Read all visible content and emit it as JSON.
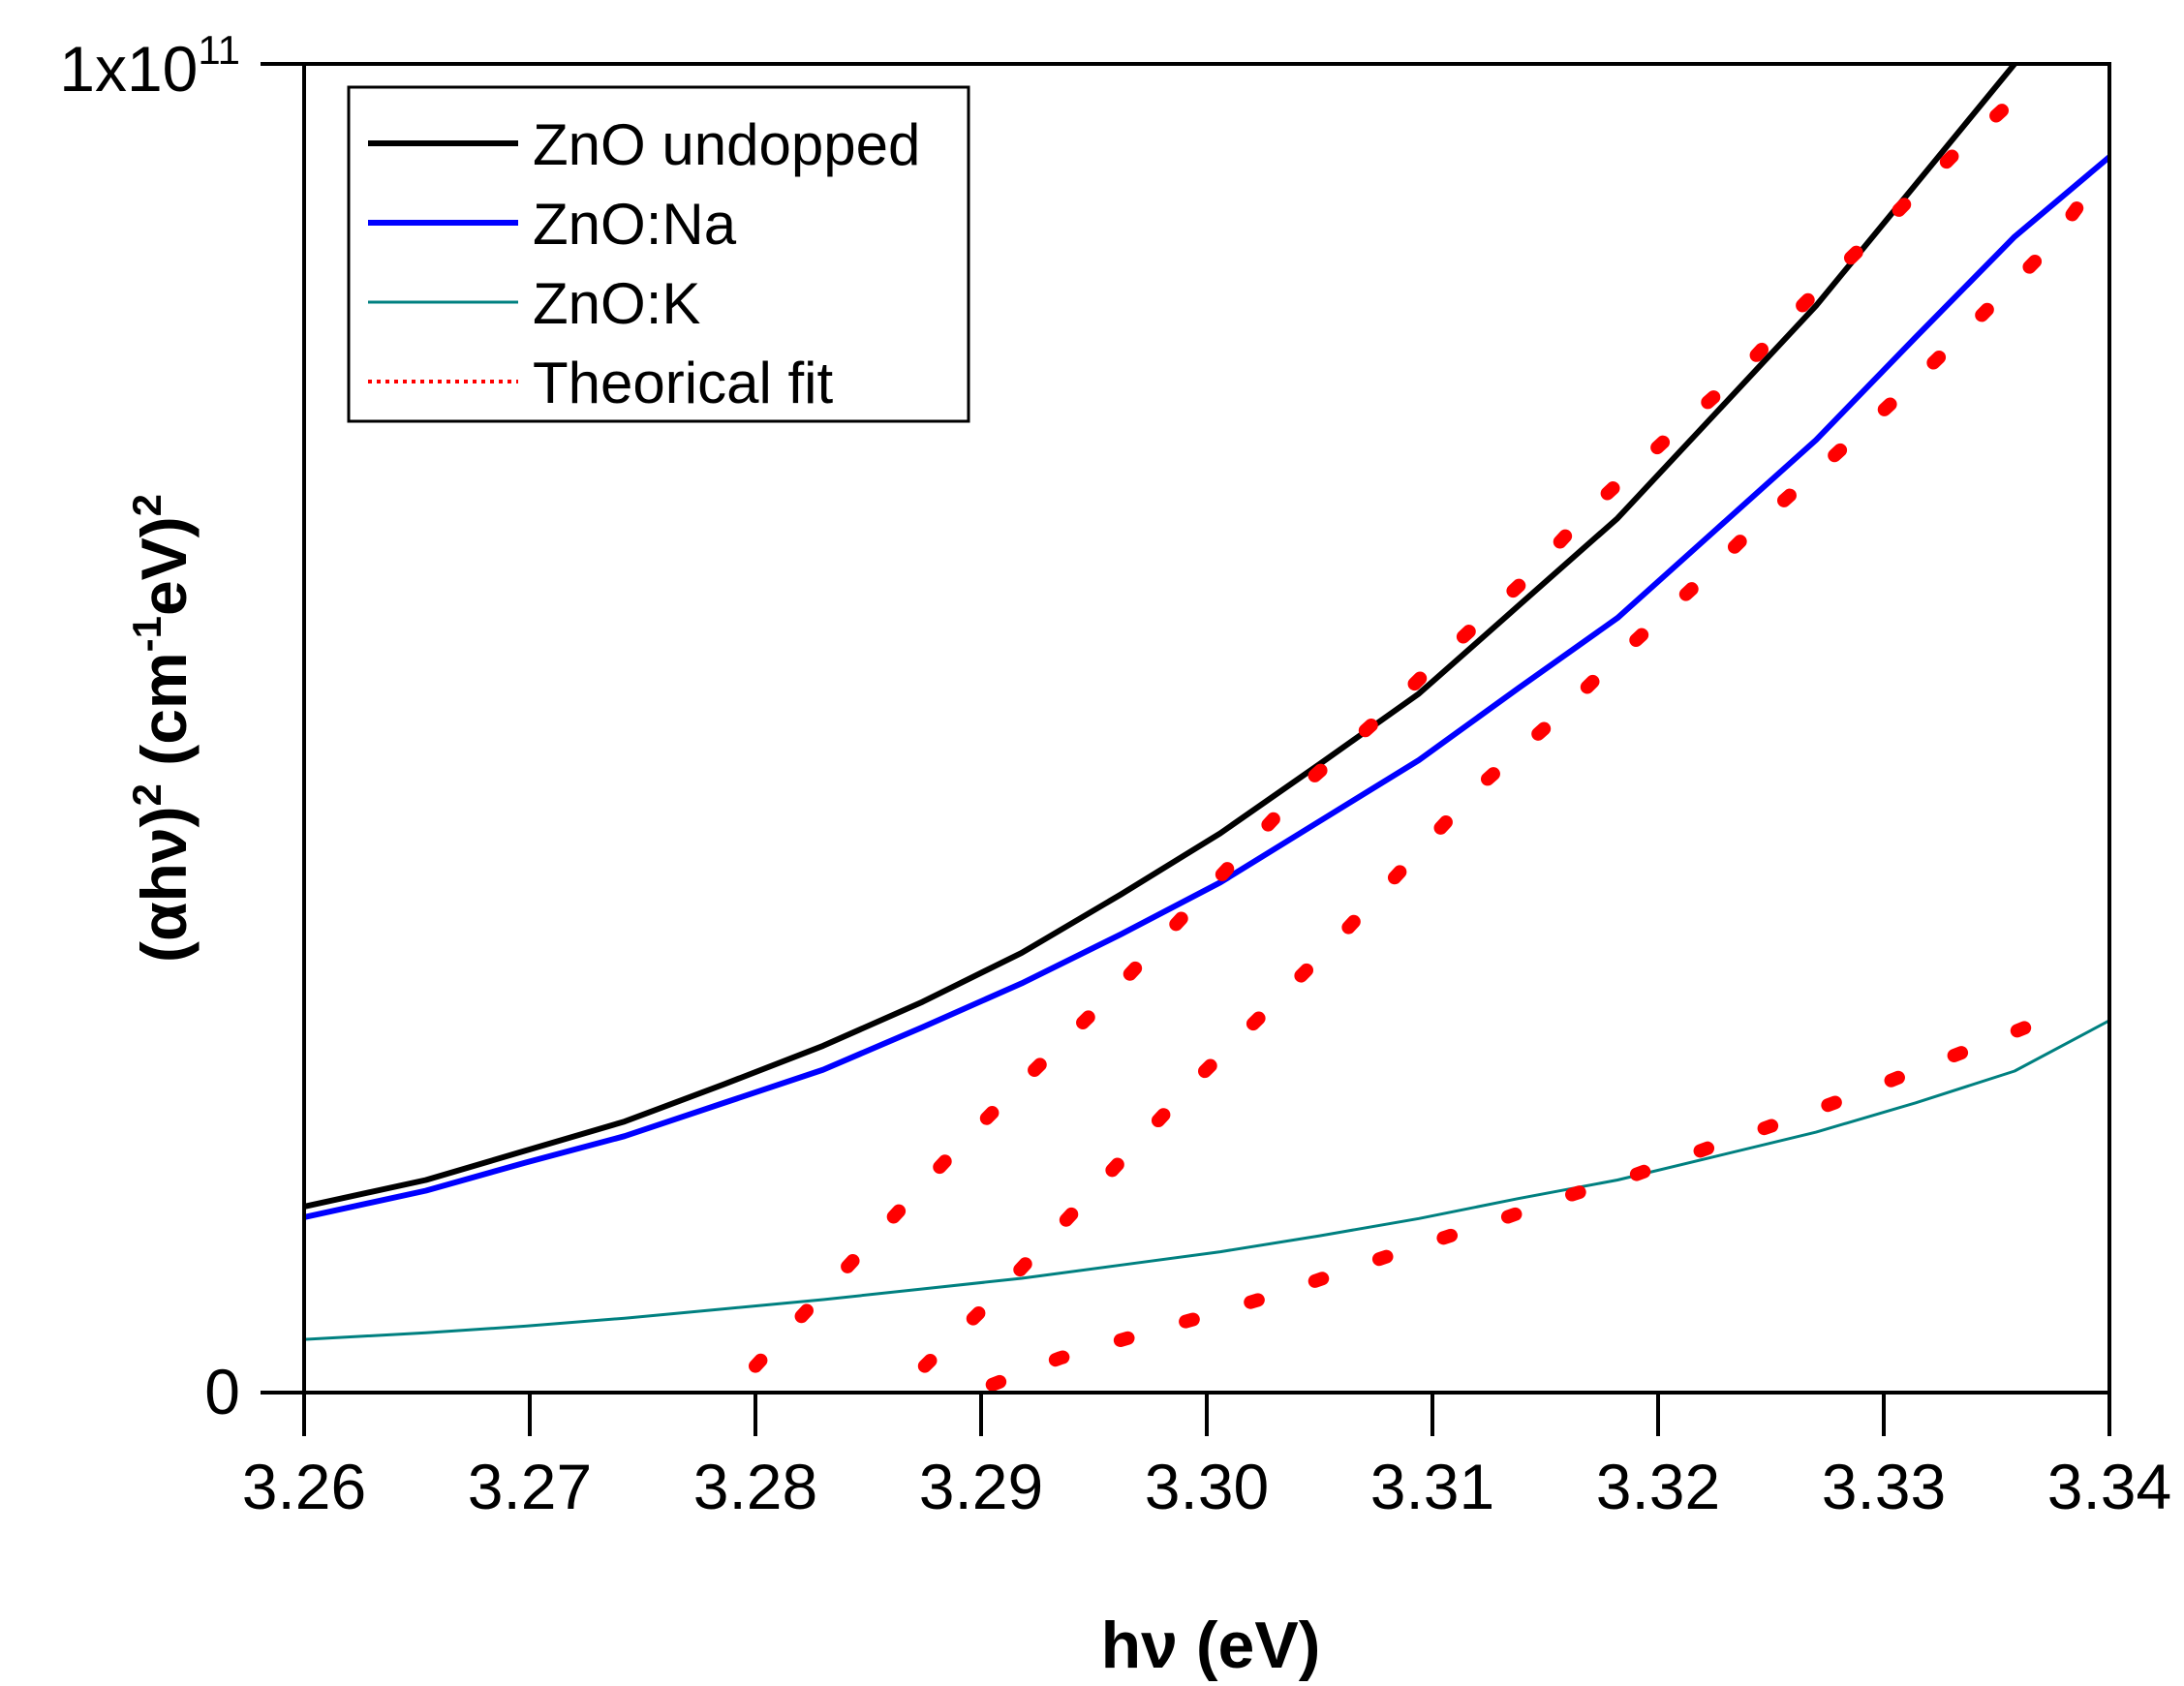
{
  "chart_data": {
    "type": "line",
    "title": "",
    "xlabel": "hν (eV)",
    "ylabel": "(αhν)² (cm⁻¹eV)²",
    "xlabel_parts": {
      "main": "hν ",
      "unit": "(eV)"
    },
    "ylabel_parts": {
      "pre": "(αhν)",
      "sup1": "2",
      "mid": " (cm",
      "sup2": "-1",
      "post": "eV)",
      "sup3": "2"
    },
    "xlim": [
      3.26,
      3.34
    ],
    "ylim": [
      0,
      100000000000.0
    ],
    "x_ticks": [
      3.26,
      3.27,
      3.28,
      3.29,
      3.3,
      3.31,
      3.32,
      3.33,
      3.34
    ],
    "x_tick_labels": [
      "3.26",
      "3.27",
      "3.28",
      "3.29",
      "3.30",
      "3.31",
      "3.32",
      "3.33",
      "3.34"
    ],
    "y_ticks": [
      0,
      100000000000.0
    ],
    "y_tick_labels": [
      {
        "base": "0",
        "exp": ""
      },
      {
        "base": "1x10",
        "exp": "11"
      }
    ],
    "grid": false,
    "legend_position": "top-left",
    "series": [
      {
        "name": "ZnO undopped",
        "color": "#000000",
        "style": "solid",
        "weight": "thick",
        "x": [
          3.26,
          3.2654,
          3.2698,
          3.2742,
          3.2786,
          3.283,
          3.2874,
          3.2918,
          3.2962,
          3.3006,
          3.305,
          3.3094,
          3.3138,
          3.3182,
          3.3226,
          3.327,
          3.3314,
          3.3358
        ],
        "y": [
          14000000000.0,
          16000000000.0,
          18200000000.0,
          20400000000.0,
          23200000000.0,
          26100000000.0,
          29400000000.0,
          33100000000.0,
          37500000000.0,
          42100000000.0,
          47300000000.0,
          52600000000.0,
          59200000000.0,
          65800000000.0,
          73800000000.0,
          81800000000.0,
          90900000000.0,
          100000000000.0
        ]
      },
      {
        "name": "ZnO:Na",
        "color": "#0000ff",
        "style": "solid",
        "weight": "thick",
        "x": [
          3.26,
          3.2654,
          3.2698,
          3.2742,
          3.2786,
          3.283,
          3.2874,
          3.2918,
          3.2962,
          3.3006,
          3.305,
          3.3094,
          3.3138,
          3.3182,
          3.3226,
          3.327,
          3.3314,
          3.3358,
          3.34
        ],
        "y": [
          13200000000.0,
          15200000000.0,
          17300000000.0,
          19300000000.0,
          21800000000.0,
          24300000000.0,
          27500000000.0,
          30800000000.0,
          34500000000.0,
          38400000000.0,
          43000000000.0,
          47600000000.0,
          53000000000.0,
          58300000000.0,
          65000000000.0,
          71700000000.0,
          79400000000.0,
          87000000000.0,
          93000000000.0
        ]
      },
      {
        "name": "ZnO:K",
        "color": "#008080",
        "style": "solid",
        "weight": "thin",
        "x": [
          3.26,
          3.2654,
          3.2698,
          3.2742,
          3.2786,
          3.283,
          3.2874,
          3.2918,
          3.2962,
          3.3006,
          3.305,
          3.3094,
          3.3138,
          3.3182,
          3.3226,
          3.327,
          3.3314,
          3.3358,
          3.34
        ],
        "y": [
          4000000000.0,
          4500000000.0,
          5000000000.0,
          5600000000.0,
          6300000000.0,
          7000000000.0,
          7800000000.0,
          8600000000.0,
          9600000000.0,
          10600000000.0,
          11800000000.0,
          13100000000.0,
          14600000000.0,
          16000000000.0,
          17800000000.0,
          19600000000.0,
          21800000000.0,
          24200000000.0,
          28000000000.0
        ]
      },
      {
        "name": "Theorical fit",
        "color": "#ff0000",
        "style": "dotted",
        "weight": "thick",
        "x": [
          3.28,
          3.283,
          3.286,
          3.289,
          3.2922,
          3.2955,
          3.2985,
          3.3015,
          3.3045,
          3.3078,
          3.3108,
          3.314,
          3.317,
          3.3202,
          3.3235,
          3.3265,
          3.3298,
          3.333,
          3.3362
        ],
        "y": [
          2000000000.0,
          7500000000.0,
          13000000000.0,
          18500000000.0,
          24000000000.0,
          29500000000.0,
          35000000000.0,
          40500000000.0,
          46000000000.0,
          51000000000.0,
          56000000000.0,
          61000000000.0,
          66500000000.0,
          71500000000.0,
          76500000000.0,
          82000000000.0,
          87500000000.0,
          93000000000.0,
          98000000000.0
        ]
      },
      {
        "name": "Theorical fit",
        "color": "#ff0000",
        "style": "dotted",
        "weight": "thick",
        "legend": false,
        "x": [
          3.2875,
          3.2905,
          3.2935,
          3.2965,
          3.2995,
          3.3028,
          3.306,
          3.309,
          3.312,
          3.3153,
          3.3183,
          3.3215,
          3.3245,
          3.3278,
          3.331,
          3.334,
          3.3372,
          3.34
        ],
        "y": [
          2000000000.0,
          7000000000.0,
          12500000000.0,
          18000000000.0,
          23500000000.0,
          29000000000.0,
          34500000000.0,
          40000000000.0,
          45500000000.0,
          50500000000.0,
          55500000000.0,
          60500000000.0,
          65500000000.0,
          70500000000.0,
          75500000000.0,
          80500000000.0,
          86000000000.0,
          92500000000.0
        ]
      },
      {
        "name": "Theorical fit",
        "color": "#ff0000",
        "style": "dotted",
        "weight": "thick",
        "legend": false,
        "x": [
          3.2905,
          3.2935,
          3.2967,
          3.3,
          3.3033,
          3.3065,
          3.3095,
          3.3128,
          3.3158,
          3.319,
          3.3222,
          3.3254,
          3.3286,
          3.3318,
          3.335,
          3.3382
        ],
        "y": [
          600000000.0,
          2600000000.0,
          4200000000.0,
          5800000000.0,
          7500000000.0,
          9400000000.0,
          11100000000.0,
          12900000000.0,
          14700000000.0,
          16400000000.0,
          18400000000.0,
          20300000000.0,
          22300000000.0,
          24500000000.0,
          26600000000.0,
          28800000000.0
        ]
      }
    ]
  }
}
